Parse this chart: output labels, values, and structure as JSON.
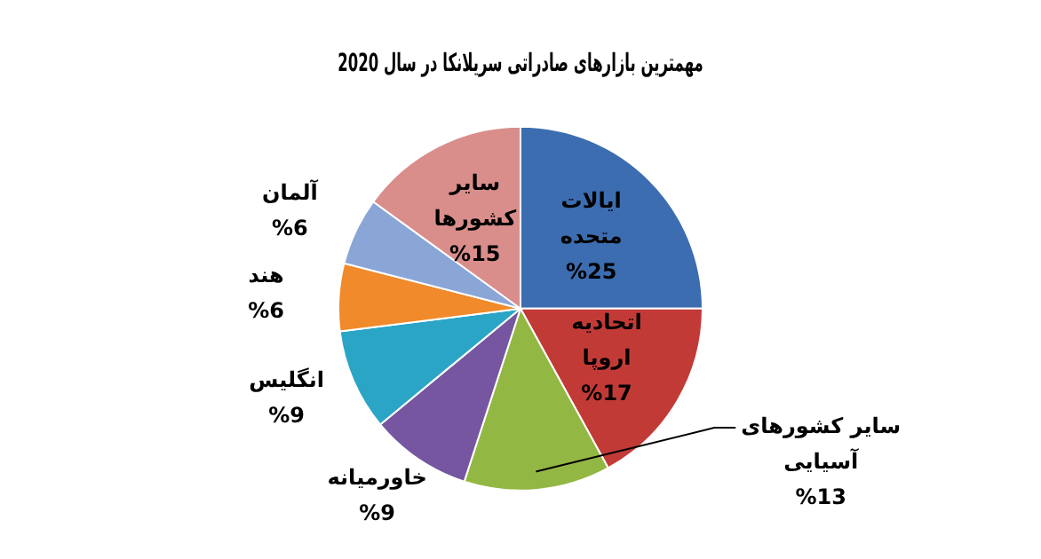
{
  "chart_data": {
    "type": "pie",
    "title": "مهمترین بازارهای صادراتی سریلانکا در سال 2020",
    "categories": [
      "ایالات متحده",
      "اتحادیه اروپا",
      "سایر کشورهای آسیایی",
      "خاورمیانه",
      "انگلیس",
      "هند",
      "آلمان",
      "سایر کشورها"
    ],
    "values": [
      25,
      17,
      13,
      9,
      9,
      6,
      6,
      15
    ],
    "value_labels": [
      "%25",
      "%17",
      "%13",
      "%9",
      "%9",
      "%6",
      "%6",
      "%15"
    ],
    "colors": [
      "#3c6db0",
      "#c23a36",
      "#93b743",
      "#7656a0",
      "#2aa5c6",
      "#f08a2a",
      "#8aa6d6",
      "#d98e8b"
    ],
    "legend": false
  }
}
